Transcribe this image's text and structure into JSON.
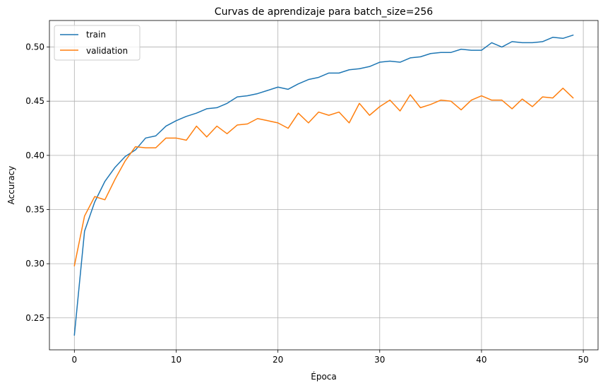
{
  "chart_data": {
    "type": "line",
    "title": "Curvas de aprendizaje para batch_size=256",
    "xlabel": "Época",
    "ylabel": "Accuracy",
    "xlim": [
      -2.45,
      51.45
    ],
    "ylim": [
      0.2205,
      0.5245
    ],
    "xticks": [
      0,
      10,
      20,
      30,
      40,
      50
    ],
    "yticks": [
      0.25,
      0.3,
      0.35,
      0.4,
      0.45,
      0.5
    ],
    "ytick_labels": [
      "0.25",
      "0.30",
      "0.35",
      "0.40",
      "0.45",
      "0.50"
    ],
    "grid": true,
    "legend_position": "upper-left",
    "series": [
      {
        "name": "train",
        "color": "#1f77b4",
        "x": [
          0,
          1,
          2,
          3,
          4,
          5,
          6,
          7,
          8,
          9,
          10,
          11,
          12,
          13,
          14,
          15,
          16,
          17,
          18,
          19,
          20,
          21,
          22,
          23,
          24,
          25,
          26,
          27,
          28,
          29,
          30,
          31,
          32,
          33,
          34,
          35,
          36,
          37,
          38,
          39,
          40,
          41,
          42,
          43,
          44,
          45,
          46,
          47,
          48,
          49
        ],
        "values": [
          0.234,
          0.33,
          0.357,
          0.376,
          0.389,
          0.399,
          0.405,
          0.416,
          0.418,
          0.427,
          0.432,
          0.436,
          0.439,
          0.443,
          0.444,
          0.448,
          0.454,
          0.455,
          0.457,
          0.46,
          0.463,
          0.461,
          0.466,
          0.47,
          0.472,
          0.476,
          0.476,
          0.479,
          0.48,
          0.482,
          0.486,
          0.487,
          0.486,
          0.49,
          0.491,
          0.494,
          0.495,
          0.495,
          0.498,
          0.497,
          0.497,
          0.504,
          0.5,
          0.505,
          0.504,
          0.504,
          0.505,
          0.509,
          0.508,
          0.511
        ]
      },
      {
        "name": "validation",
        "color": "#ff7f0e",
        "x": [
          0,
          1,
          2,
          3,
          4,
          5,
          6,
          7,
          8,
          9,
          10,
          11,
          12,
          13,
          14,
          15,
          16,
          17,
          18,
          19,
          20,
          21,
          22,
          23,
          24,
          25,
          26,
          27,
          28,
          29,
          30,
          31,
          32,
          33,
          34,
          35,
          36,
          37,
          38,
          39,
          40,
          41,
          42,
          43,
          44,
          45,
          46,
          47,
          48,
          49
        ],
        "values": [
          0.298,
          0.344,
          0.362,
          0.359,
          0.378,
          0.395,
          0.408,
          0.407,
          0.407,
          0.416,
          0.416,
          0.414,
          0.427,
          0.417,
          0.427,
          0.42,
          0.428,
          0.429,
          0.434,
          0.432,
          0.43,
          0.425,
          0.439,
          0.43,
          0.44,
          0.437,
          0.44,
          0.43,
          0.448,
          0.437,
          0.445,
          0.451,
          0.441,
          0.456,
          0.444,
          0.447,
          0.451,
          0.45,
          0.442,
          0.451,
          0.455,
          0.451,
          0.451,
          0.443,
          0.452,
          0.445,
          0.454,
          0.453,
          0.462,
          0.453
        ]
      }
    ]
  }
}
